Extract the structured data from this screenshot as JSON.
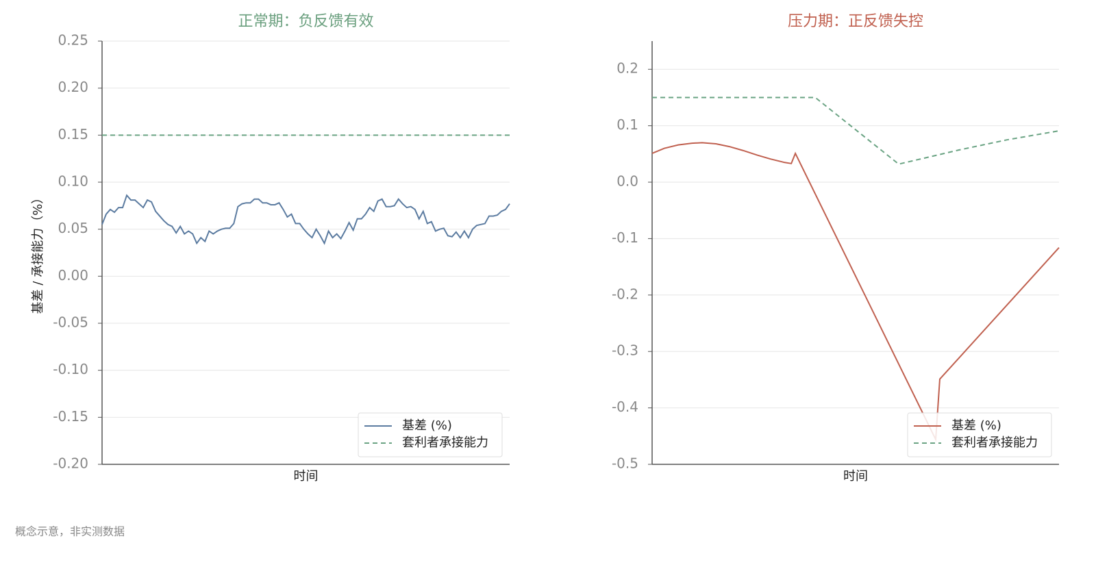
{
  "chart_data": [
    {
      "type": "line",
      "title": "正常期：负反馈有效",
      "title_color": "#6a9f7e",
      "xlabel": "时间",
      "ylabel": "基差 / 承接能力（%）",
      "xlim": [
        0,
        99
      ],
      "ylim": [
        -0.2,
        0.25
      ],
      "yticks": [
        0.25,
        {
          "value": 0.2,
          "label": "0.20"
        },
        0.15,
        {
          "value": 0.1,
          "label": "0.10"
        },
        0.05,
        {
          "value": 0,
          "label": "0.00"
        },
        -0.05,
        {
          "value": -0.1,
          "label": "-0.10"
        },
        -0.15,
        {
          "value": -0.2,
          "label": "-0.20"
        }
      ],
      "grid": true,
      "legend": "lower right",
      "series": [
        {
          "name": "基差 (%)",
          "color": "#5b7ba0",
          "linestyle": "solid",
          "x": [
            0,
            1,
            2,
            3,
            4,
            5,
            6,
            7,
            8,
            9,
            10,
            11,
            12,
            13,
            14,
            15,
            16,
            17,
            18,
            19,
            20,
            21,
            22,
            23,
            24,
            25,
            26,
            27,
            28,
            29,
            30,
            31,
            32,
            33,
            34,
            35,
            36,
            37,
            38,
            39,
            40,
            41,
            42,
            43,
            44,
            45,
            46,
            47,
            48,
            49,
            50,
            51,
            52,
            53,
            54,
            55,
            56,
            57,
            58,
            59,
            60,
            61,
            62,
            63,
            64,
            65,
            66,
            67,
            68,
            69,
            70,
            71,
            72,
            73,
            74,
            75,
            76,
            77,
            78,
            79,
            80,
            81,
            82,
            83,
            84,
            85,
            86,
            87,
            88,
            89,
            90,
            91,
            92,
            93,
            94,
            95,
            96,
            97,
            98,
            99
          ],
          "values": [
            0.055,
            0.066,
            0.071,
            0.068,
            0.073,
            0.073,
            0.086,
            0.081,
            0.081,
            0.077,
            0.073,
            0.081,
            0.079,
            0.069,
            0.064,
            0.059,
            0.055,
            0.053,
            0.046,
            0.053,
            0.045,
            0.048,
            0.045,
            0.035,
            0.041,
            0.037,
            0.048,
            0.045,
            0.048,
            0.05,
            0.051,
            0.051,
            0.056,
            0.074,
            0.077,
            0.078,
            0.078,
            0.082,
            0.082,
            0.078,
            0.078,
            0.076,
            0.076,
            0.078,
            0.071,
            0.063,
            0.066,
            0.056,
            0.056,
            0.05,
            0.045,
            0.041,
            0.05,
            0.043,
            0.035,
            0.048,
            0.041,
            0.045,
            0.04,
            0.048,
            0.057,
            0.049,
            0.061,
            0.061,
            0.066,
            0.073,
            0.069,
            0.08,
            0.082,
            0.074,
            0.074,
            0.075,
            0.082,
            0.077,
            0.073,
            0.074,
            0.071,
            0.061,
            0.069,
            0.056,
            0.058,
            0.048,
            0.05,
            0.051,
            0.043,
            0.042,
            0.047,
            0.041,
            0.048,
            0.041,
            0.05,
            0.054,
            0.055,
            0.056,
            0.064,
            0.064,
            0.065,
            0.069,
            0.071,
            0.077
          ]
        },
        {
          "name": "套利者承接能力",
          "color": "#6aa383",
          "linestyle": "dashed",
          "x": [
            0,
            99
          ],
          "values": [
            0.15,
            0.15
          ]
        }
      ]
    },
    {
      "type": "line",
      "title": "压力期：正反馈失控",
      "title_color": "#c0604f",
      "xlabel": "时间",
      "xlim": [
        0,
        100
      ],
      "ylim": [
        -0.5,
        0.25
      ],
      "yticks": [
        0.2,
        0.1,
        {
          "value": 0,
          "label": "0.0"
        },
        -0.1,
        -0.2,
        -0.3,
        -0.4,
        -0.5
      ],
      "grid": true,
      "legend": "lower right",
      "series": [
        {
          "name": "基差 (%)",
          "color": "#c0604f",
          "linestyle": "solid",
          "x": [
            0,
            3.0,
            6.4,
            9.8,
            12.3,
            15.7,
            19.0,
            22.4,
            25.8,
            29.1,
            32.5,
            34.2,
            35.2,
            69.7,
            70.7,
            100
          ],
          "values": [
            0.051,
            0.06,
            0.066,
            0.069,
            0.07,
            0.068,
            0.063,
            0.056,
            0.048,
            0.041,
            0.035,
            0.033,
            0.051,
            -0.456,
            -0.349,
            -0.116
          ]
        },
        {
          "name": "套利者承接能力",
          "color": "#6aa383",
          "linestyle": "dashed",
          "x": [
            0,
            40.1,
            60.6,
            75.4,
            87.2,
            100
          ],
          "values": [
            0.15,
            0.15,
            0.032,
            0.057,
            0.075,
            0.091
          ]
        }
      ]
    }
  ],
  "note": "概念示意，非实测数据"
}
